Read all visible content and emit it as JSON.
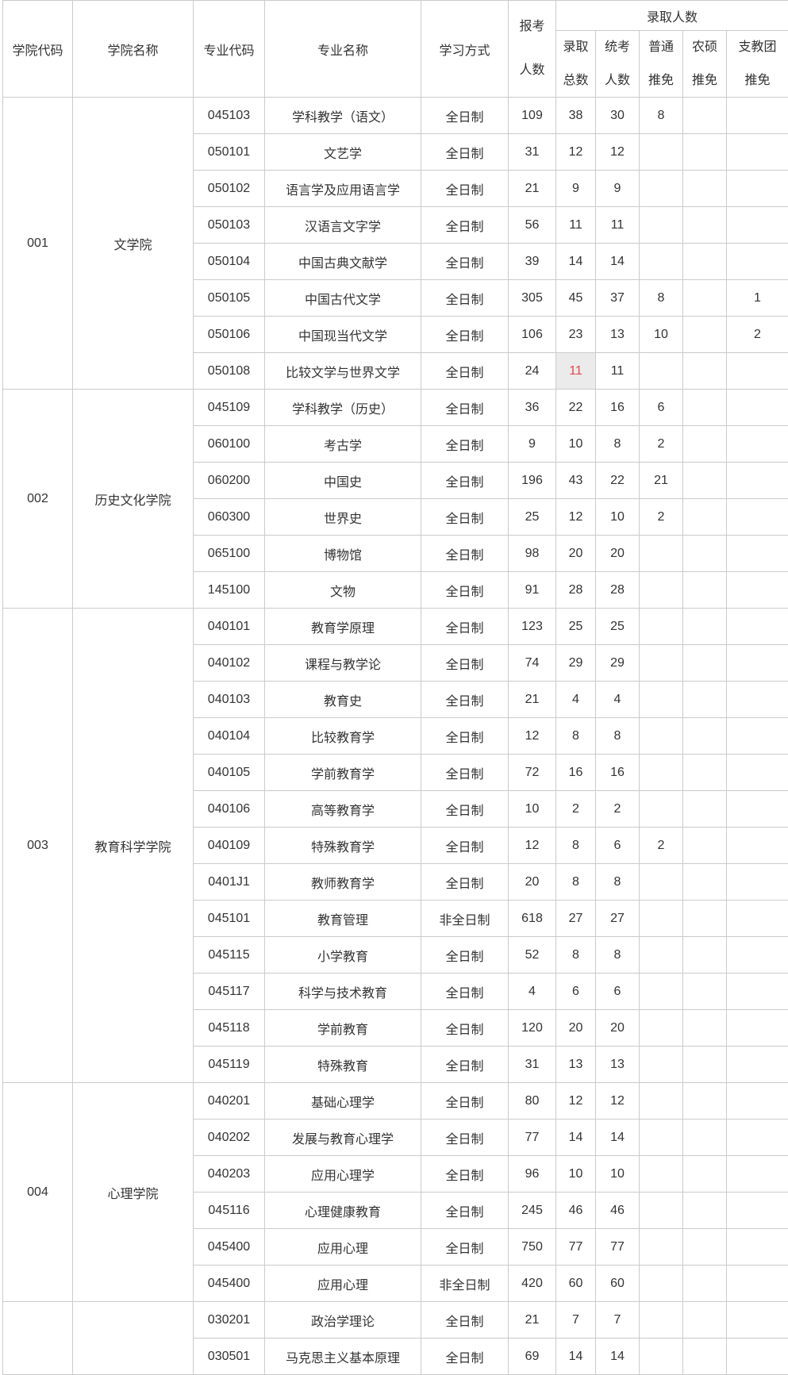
{
  "table": {
    "header": {
      "college_code": "学院代码",
      "college_name": "学院名称",
      "major_code": "专业代码",
      "major_name": "专业名称",
      "study_mode": "学习方式",
      "applicants_lines": [
        "报考",
        "人数"
      ],
      "admitted_group": "录取人数",
      "admitted_sub": [
        [
          "录取",
          "总数"
        ],
        [
          "统考",
          "人数"
        ],
        [
          "普通",
          "推免"
        ],
        [
          "农硕",
          "推免"
        ],
        [
          "支教团",
          "推免"
        ]
      ]
    },
    "groups": [
      {
        "college_code": "001",
        "college_name": "文学院",
        "rows": [
          {
            "code": "045103",
            "name": "学科教学（语文）",
            "mode": "全日制",
            "apply": "109",
            "total": "38",
            "unified": "30",
            "putui": "8",
            "nongtui": "",
            "zhitui": ""
          },
          {
            "code": "050101",
            "name": "文艺学",
            "mode": "全日制",
            "apply": "31",
            "total": "12",
            "unified": "12",
            "putui": "",
            "nongtui": "",
            "zhitui": ""
          },
          {
            "code": "050102",
            "name": "语言学及应用语言学",
            "mode": "全日制",
            "apply": "21",
            "total": "9",
            "unified": "9",
            "putui": "",
            "nongtui": "",
            "zhitui": ""
          },
          {
            "code": "050103",
            "name": "汉语言文字学",
            "mode": "全日制",
            "apply": "56",
            "total": "11",
            "unified": "11",
            "putui": "",
            "nongtui": "",
            "zhitui": ""
          },
          {
            "code": "050104",
            "name": "中国古典文献学",
            "mode": "全日制",
            "apply": "39",
            "total": "14",
            "unified": "14",
            "putui": "",
            "nongtui": "",
            "zhitui": ""
          },
          {
            "code": "050105",
            "name": "中国古代文学",
            "mode": "全日制",
            "apply": "305",
            "total": "45",
            "unified": "37",
            "putui": "8",
            "nongtui": "",
            "zhitui": "1"
          },
          {
            "code": "050106",
            "name": "中国现当代文学",
            "mode": "全日制",
            "apply": "106",
            "total": "23",
            "unified": "13",
            "putui": "10",
            "nongtui": "",
            "zhitui": "2"
          },
          {
            "code": "050108",
            "name": "比较文学与世界文学",
            "mode": "全日制",
            "apply": "24",
            "total": "11",
            "total_highlight": true,
            "unified": "11",
            "putui": "",
            "nongtui": "",
            "zhitui": ""
          }
        ]
      },
      {
        "college_code": "002",
        "college_name": "历史文化学院",
        "rows": [
          {
            "code": "045109",
            "name": "学科教学（历史）",
            "mode": "全日制",
            "apply": "36",
            "total": "22",
            "unified": "16",
            "putui": "6",
            "nongtui": "",
            "zhitui": ""
          },
          {
            "code": "060100",
            "name": "考古学",
            "mode": "全日制",
            "apply": "9",
            "total": "10",
            "unified": "8",
            "putui": "2",
            "nongtui": "",
            "zhitui": ""
          },
          {
            "code": "060200",
            "name": "中国史",
            "mode": "全日制",
            "apply": "196",
            "total": "43",
            "unified": "22",
            "putui": "21",
            "nongtui": "",
            "zhitui": ""
          },
          {
            "code": "060300",
            "name": "世界史",
            "mode": "全日制",
            "apply": "25",
            "total": "12",
            "unified": "10",
            "putui": "2",
            "nongtui": "",
            "zhitui": ""
          },
          {
            "code": "065100",
            "name": "博物馆",
            "mode": "全日制",
            "apply": "98",
            "total": "20",
            "unified": "20",
            "putui": "",
            "nongtui": "",
            "zhitui": ""
          },
          {
            "code": "145100",
            "name": "文物",
            "mode": "全日制",
            "apply": "91",
            "total": "28",
            "unified": "28",
            "putui": "",
            "nongtui": "",
            "zhitui": ""
          }
        ]
      },
      {
        "college_code": "003",
        "college_name": "教育科学学院",
        "rows": [
          {
            "code": "040101",
            "name": "教育学原理",
            "mode": "全日制",
            "apply": "123",
            "total": "25",
            "unified": "25",
            "putui": "",
            "nongtui": "",
            "zhitui": ""
          },
          {
            "code": "040102",
            "name": "课程与教学论",
            "mode": "全日制",
            "apply": "74",
            "total": "29",
            "unified": "29",
            "putui": "",
            "nongtui": "",
            "zhitui": ""
          },
          {
            "code": "040103",
            "name": "教育史",
            "mode": "全日制",
            "apply": "21",
            "total": "4",
            "unified": "4",
            "putui": "",
            "nongtui": "",
            "zhitui": ""
          },
          {
            "code": "040104",
            "name": "比较教育学",
            "mode": "全日制",
            "apply": "12",
            "total": "8",
            "unified": "8",
            "putui": "",
            "nongtui": "",
            "zhitui": ""
          },
          {
            "code": "040105",
            "name": "学前教育学",
            "mode": "全日制",
            "apply": "72",
            "total": "16",
            "unified": "16",
            "putui": "",
            "nongtui": "",
            "zhitui": ""
          },
          {
            "code": "040106",
            "name": "高等教育学",
            "mode": "全日制",
            "apply": "10",
            "total": "2",
            "unified": "2",
            "putui": "",
            "nongtui": "",
            "zhitui": ""
          },
          {
            "code": "040109",
            "name": "特殊教育学",
            "mode": "全日制",
            "apply": "12",
            "total": "8",
            "unified": "6",
            "putui": "2",
            "nongtui": "",
            "zhitui": ""
          },
          {
            "code": "0401J1",
            "name": "教师教育学",
            "mode": "全日制",
            "apply": "20",
            "total": "8",
            "unified": "8",
            "putui": "",
            "nongtui": "",
            "zhitui": ""
          },
          {
            "code": "045101",
            "name": "教育管理",
            "mode": "非全日制",
            "apply": "618",
            "total": "27",
            "unified": "27",
            "putui": "",
            "nongtui": "",
            "zhitui": ""
          },
          {
            "code": "045115",
            "name": "小学教育",
            "mode": "全日制",
            "apply": "52",
            "total": "8",
            "unified": "8",
            "putui": "",
            "nongtui": "",
            "zhitui": ""
          },
          {
            "code": "045117",
            "name": "科学与技术教育",
            "mode": "全日制",
            "apply": "4",
            "total": "6",
            "unified": "6",
            "putui": "",
            "nongtui": "",
            "zhitui": ""
          },
          {
            "code": "045118",
            "name": "学前教育",
            "mode": "全日制",
            "apply": "120",
            "total": "20",
            "unified": "20",
            "putui": "",
            "nongtui": "",
            "zhitui": ""
          },
          {
            "code": "045119",
            "name": "特殊教育",
            "mode": "全日制",
            "apply": "31",
            "total": "13",
            "unified": "13",
            "putui": "",
            "nongtui": "",
            "zhitui": ""
          }
        ]
      },
      {
        "college_code": "004",
        "college_name": "心理学院",
        "rows": [
          {
            "code": "040201",
            "name": "基础心理学",
            "mode": "全日制",
            "apply": "80",
            "total": "12",
            "unified": "12",
            "putui": "",
            "nongtui": "",
            "zhitui": ""
          },
          {
            "code": "040202",
            "name": "发展与教育心理学",
            "mode": "全日制",
            "apply": "77",
            "total": "14",
            "unified": "14",
            "putui": "",
            "nongtui": "",
            "zhitui": ""
          },
          {
            "code": "040203",
            "name": "应用心理学",
            "mode": "全日制",
            "apply": "96",
            "total": "10",
            "unified": "10",
            "putui": "",
            "nongtui": "",
            "zhitui": ""
          },
          {
            "code": "045116",
            "name": "心理健康教育",
            "mode": "全日制",
            "apply": "245",
            "total": "46",
            "unified": "46",
            "putui": "",
            "nongtui": "",
            "zhitui": ""
          },
          {
            "code": "045400",
            "name": "应用心理",
            "mode": "全日制",
            "apply": "750",
            "total": "77",
            "unified": "77",
            "putui": "",
            "nongtui": "",
            "zhitui": ""
          },
          {
            "code": "045400",
            "name": "应用心理",
            "mode": "非全日制",
            "apply": "420",
            "total": "60",
            "unified": "60",
            "putui": "",
            "nongtui": "",
            "zhitui": ""
          }
        ]
      },
      {
        "college_code": "",
        "college_name": "",
        "rows": [
          {
            "code": "030201",
            "name": "政治学理论",
            "mode": "全日制",
            "apply": "21",
            "total": "7",
            "unified": "7",
            "putui": "",
            "nongtui": "",
            "zhitui": ""
          },
          {
            "code": "030501",
            "name": "马克思主义基本原理",
            "mode": "全日制",
            "apply": "69",
            "total": "14",
            "unified": "14",
            "putui": "",
            "nongtui": "",
            "zhitui": ""
          }
        ]
      }
    ]
  },
  "colors": {
    "text": "#333333",
    "border": "#cbcbcb",
    "highlight_bg": "#ebebeb",
    "highlight_text": "#e8474b"
  }
}
